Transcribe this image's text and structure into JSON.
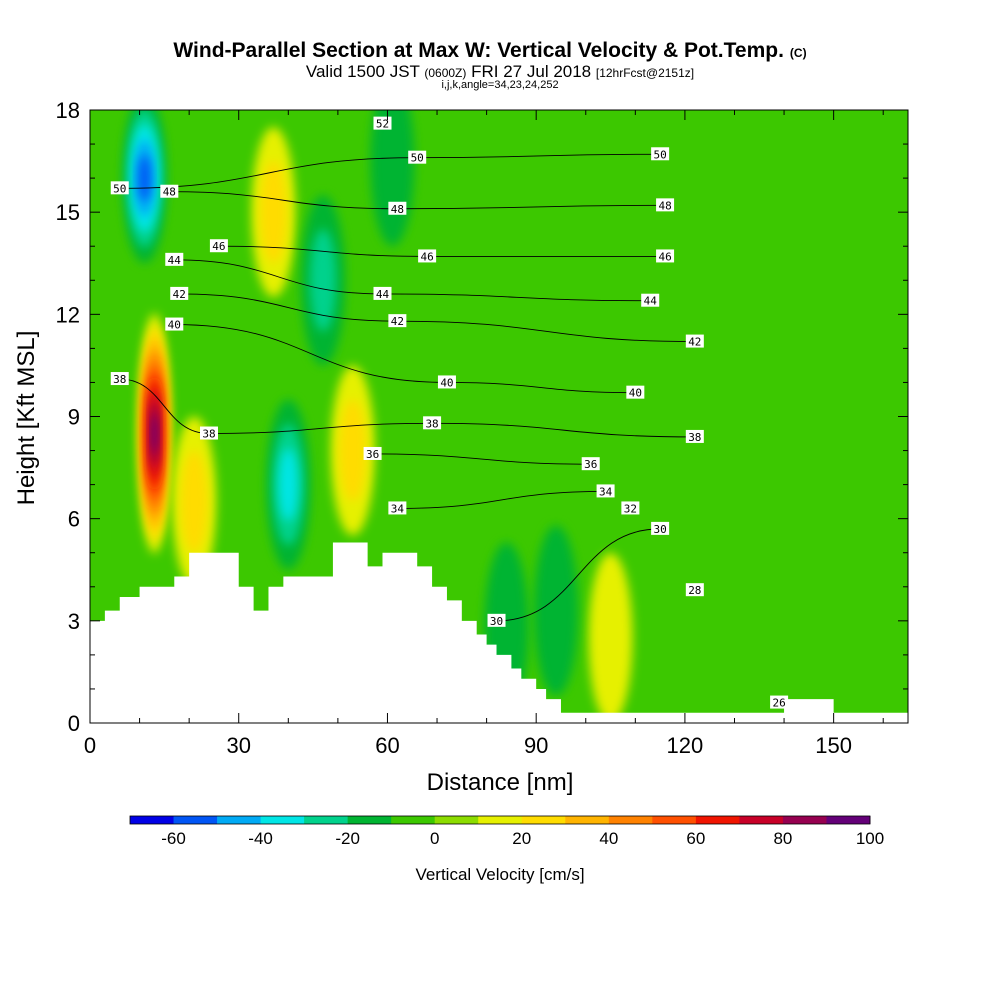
{
  "title": {
    "main": "Wind-Parallel Section at Max W: Vertical Velocity & Pot.Temp.",
    "copyright": "(C)",
    "valid_prefix": "Valid 1500 JST",
    "valid_utc": "(0600Z)",
    "valid_date": "FRI 27 Jul 2018",
    "forecast": "[12hrFcst@2151z]",
    "indices": "i,j,k,angle=34,23,24,252"
  },
  "chart_data": {
    "type": "heatmap",
    "xlabel": "Distance [nm]",
    "ylabel": "Height [Kft MSL]",
    "xlim": [
      0,
      165
    ],
    "ylim": [
      0,
      18
    ],
    "x_ticks": [
      "0",
      "30",
      "60",
      "90",
      "120",
      "150"
    ],
    "y_ticks": [
      "0",
      "3",
      "6",
      "9",
      "12",
      "15",
      "18"
    ],
    "terrain": [
      [
        0,
        3.0
      ],
      [
        3,
        3.3
      ],
      [
        6,
        3.7
      ],
      [
        10,
        4.0
      ],
      [
        17,
        4.3
      ],
      [
        20,
        5.0
      ],
      [
        30,
        4.0
      ],
      [
        33,
        3.3
      ],
      [
        36,
        4.0
      ],
      [
        39,
        4.3
      ],
      [
        49,
        5.3
      ],
      [
        56,
        4.6
      ],
      [
        59,
        5.0
      ],
      [
        66,
        4.6
      ],
      [
        69,
        4.0
      ],
      [
        72,
        3.6
      ],
      [
        75,
        3.0
      ],
      [
        78,
        2.6
      ],
      [
        80,
        2.3
      ],
      [
        82,
        2.0
      ],
      [
        85,
        1.6
      ],
      [
        87,
        1.3
      ],
      [
        90,
        1.0
      ],
      [
        92,
        0.7
      ],
      [
        95,
        0.3
      ],
      [
        100,
        0.3
      ],
      [
        110,
        0.3
      ],
      [
        120,
        0.3
      ],
      [
        130,
        0.3
      ],
      [
        136,
        0.3
      ],
      [
        140,
        0.7
      ],
      [
        148,
        0.7
      ],
      [
        150,
        0.3
      ],
      [
        165,
        0.3
      ]
    ],
    "vertical_velocity_colorbar": {
      "title": "Vertical Velocity [cm/s]",
      "labels": [
        "-60",
        "-40",
        "-20",
        "0",
        "20",
        "40",
        "60",
        "80",
        "100"
      ],
      "colors": [
        "#0000e6",
        "#0055f5",
        "#00aaf5",
        "#00e6e6",
        "#00d28c",
        "#00b432",
        "#3cc800",
        "#8cdc00",
        "#e6f000",
        "#ffdc00",
        "#ffb400",
        "#ff8200",
        "#ff5000",
        "#f01400",
        "#c80028",
        "#960050",
        "#640078"
      ]
    },
    "vertical_velocity_features": [
      {
        "kind": "updraft",
        "x": 13,
        "y": 8.5,
        "peak": 90
      },
      {
        "kind": "updraft",
        "x": 21,
        "y": 6.5,
        "peak": 20
      },
      {
        "kind": "updraft",
        "x": 53,
        "y": 8.0,
        "peak": 20
      },
      {
        "kind": "updraft",
        "x": 37,
        "y": 15.0,
        "peak": 15
      },
      {
        "kind": "updraft",
        "x": 105,
        "y": 2.5,
        "peak": 10
      },
      {
        "kind": "downdraft",
        "x": 11,
        "y": 16.0,
        "peak": -50
      },
      {
        "kind": "downdraft",
        "x": 40,
        "y": 7.0,
        "peak": -30
      },
      {
        "kind": "downdraft",
        "x": 47,
        "y": 13.0,
        "peak": -15
      },
      {
        "kind": "downdraft",
        "x": 61,
        "y": 16.5,
        "peak": -10
      },
      {
        "kind": "downdraft",
        "x": 84,
        "y": 2.8,
        "peak": -12
      },
      {
        "kind": "downdraft",
        "x": 94,
        "y": 3.3,
        "peak": -10
      }
    ],
    "potential_temperature_labels": [
      {
        "text": "52",
        "x": 59,
        "y": 17.6
      },
      {
        "text": "50",
        "x": 66,
        "y": 16.6
      },
      {
        "text": "50",
        "x": 115,
        "y": 16.7
      },
      {
        "text": "50",
        "x": 6,
        "y": 15.7
      },
      {
        "text": "48",
        "x": 16,
        "y": 15.6
      },
      {
        "text": "48",
        "x": 62,
        "y": 15.1
      },
      {
        "text": "48",
        "x": 116,
        "y": 15.2
      },
      {
        "text": "46",
        "x": 26,
        "y": 14.0
      },
      {
        "text": "46",
        "x": 68,
        "y": 13.7
      },
      {
        "text": "46",
        "x": 116,
        "y": 13.7
      },
      {
        "text": "44",
        "x": 17,
        "y": 13.6
      },
      {
        "text": "44",
        "x": 59,
        "y": 12.6
      },
      {
        "text": "44",
        "x": 113,
        "y": 12.4
      },
      {
        "text": "42",
        "x": 18,
        "y": 12.6
      },
      {
        "text": "42",
        "x": 62,
        "y": 11.8
      },
      {
        "text": "42",
        "x": 122,
        "y": 11.2
      },
      {
        "text": "40",
        "x": 17,
        "y": 11.7
      },
      {
        "text": "40",
        "x": 72,
        "y": 10.0
      },
      {
        "text": "40",
        "x": 110,
        "y": 9.7
      },
      {
        "text": "38",
        "x": 6,
        "y": 10.1
      },
      {
        "text": "38",
        "x": 24,
        "y": 8.5
      },
      {
        "text": "38",
        "x": 69,
        "y": 8.8
      },
      {
        "text": "38",
        "x": 122,
        "y": 8.4
      },
      {
        "text": "36",
        "x": 57,
        "y": 7.9
      },
      {
        "text": "36",
        "x": 101,
        "y": 7.6
      },
      {
        "text": "34",
        "x": 62,
        "y": 6.3
      },
      {
        "text": "34",
        "x": 104,
        "y": 6.8
      },
      {
        "text": "32",
        "x": 109,
        "y": 6.3
      },
      {
        "text": "30",
        "x": 115,
        "y": 5.7
      },
      {
        "text": "30",
        "x": 82,
        "y": 3.0
      },
      {
        "text": "28",
        "x": 122,
        "y": 3.9
      },
      {
        "text": "26",
        "x": 139,
        "y": 0.6
      }
    ]
  }
}
